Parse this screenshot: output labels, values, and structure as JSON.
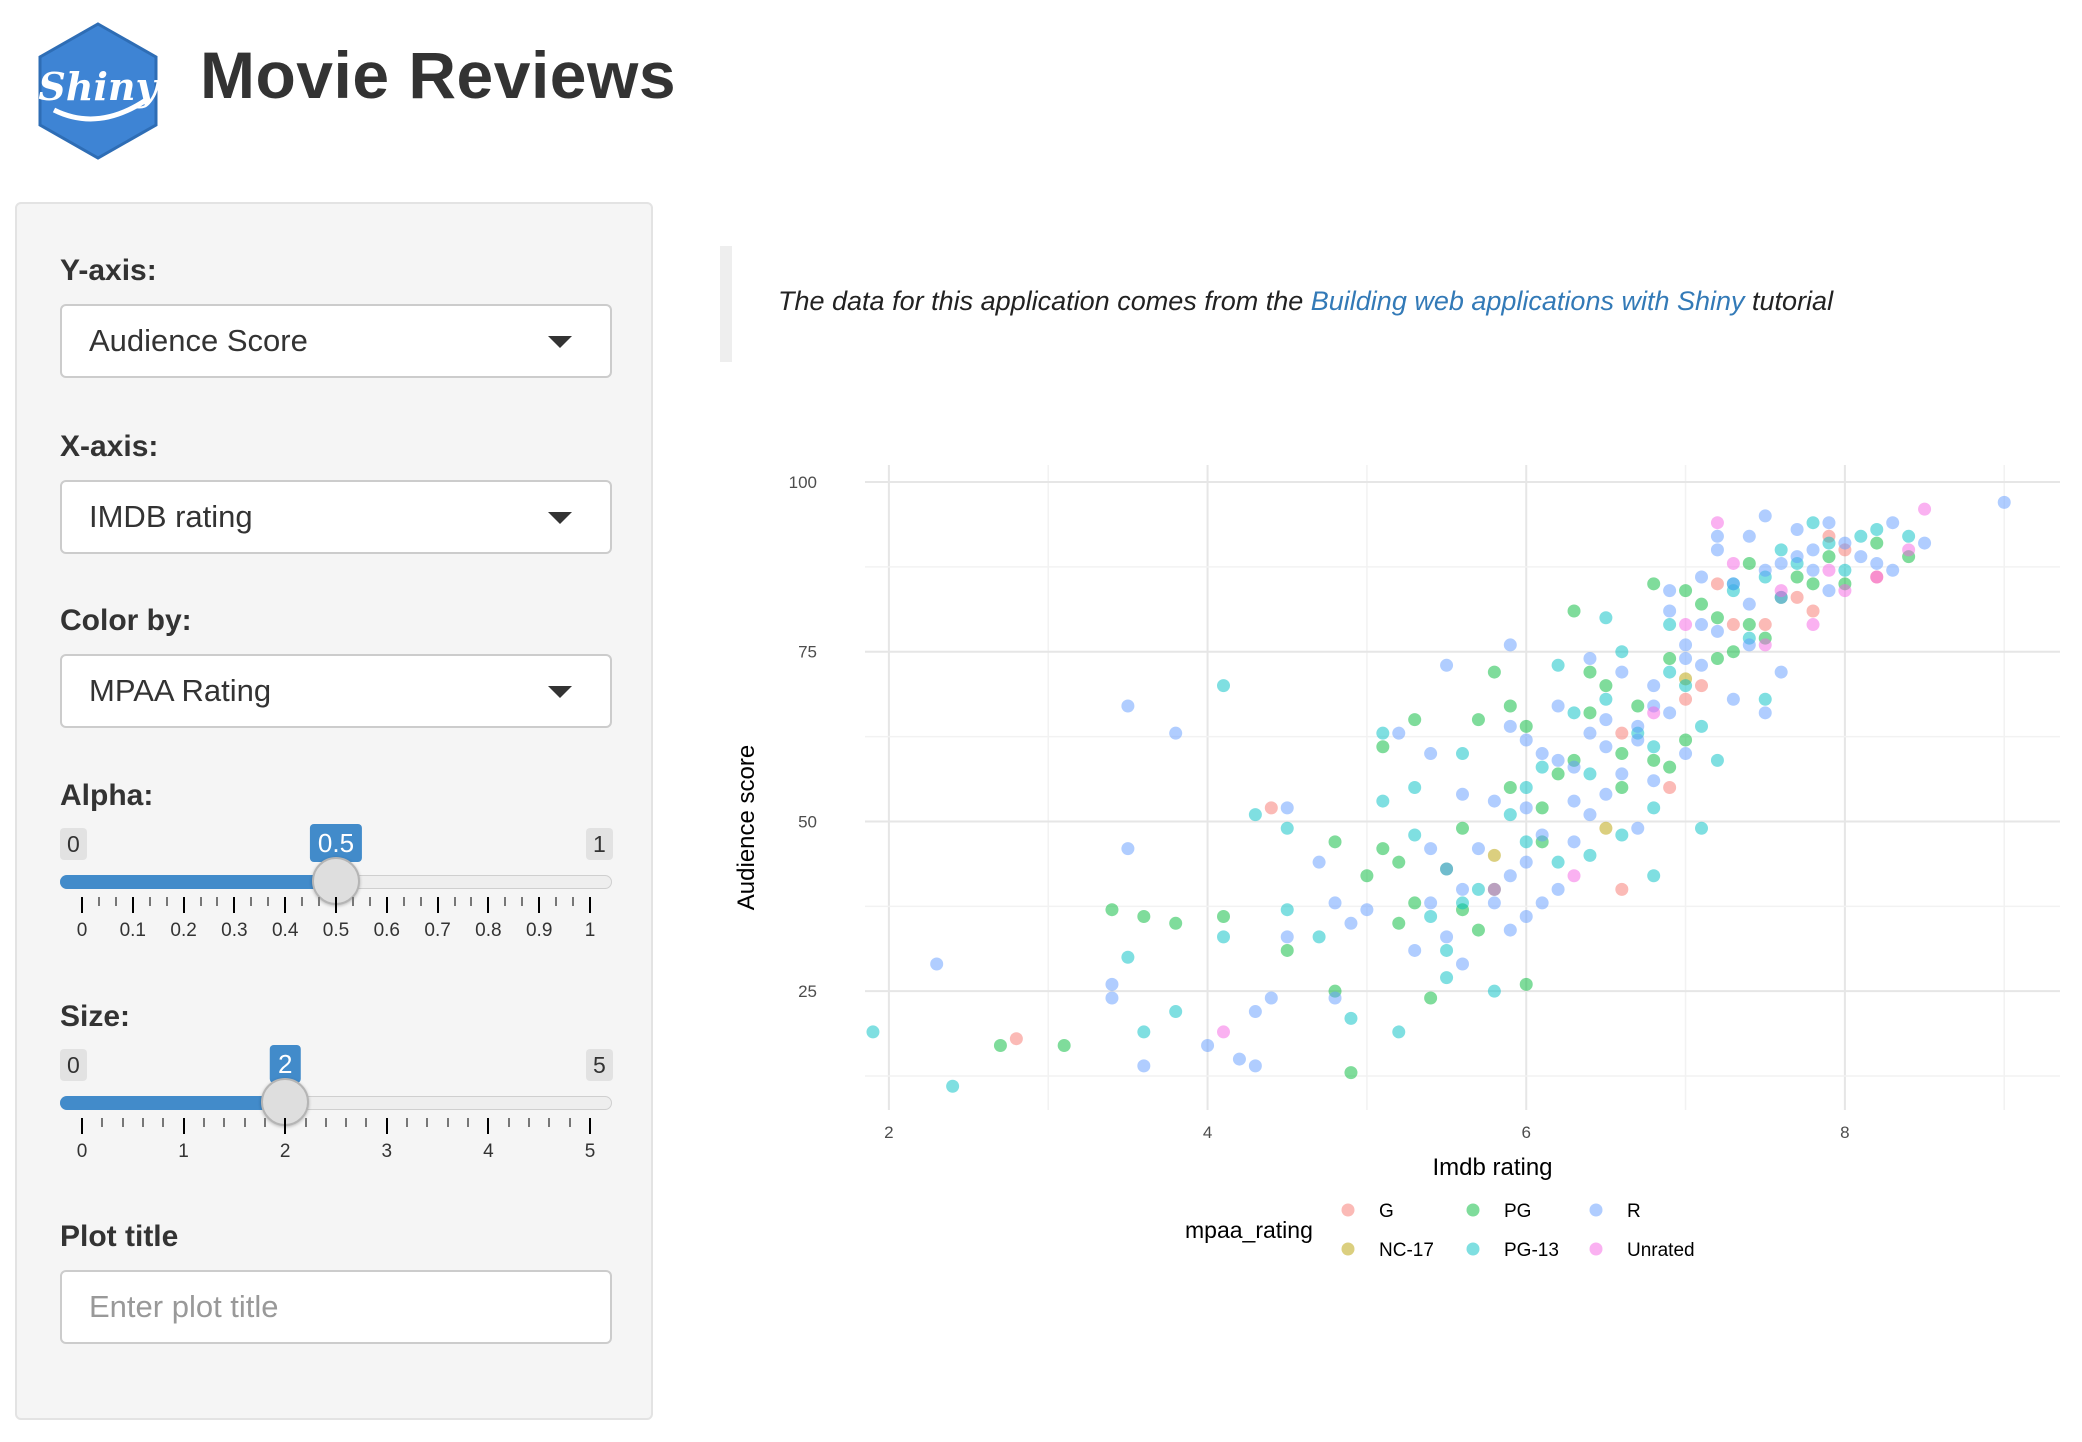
{
  "app": {
    "logo_text": "Shiny",
    "title": "Movie Reviews"
  },
  "sidebar": {
    "y_axis": {
      "label": "Y-axis:",
      "value": "Audience Score"
    },
    "x_axis": {
      "label": "X-axis:",
      "value": "IMDB rating"
    },
    "color_by": {
      "label": "Color by:",
      "value": "MPAA Rating"
    },
    "alpha": {
      "label": "Alpha:",
      "min_label": "0",
      "max_label": "1",
      "value_label": "0.5",
      "min": 0,
      "max": 1,
      "value": 0.5,
      "tick_labels": [
        "0",
        "0.1",
        "0.2",
        "0.3",
        "0.4",
        "0.5",
        "0.6",
        "0.7",
        "0.8",
        "0.9",
        "1"
      ]
    },
    "size": {
      "label": "Size:",
      "min_label": "0",
      "max_label": "5",
      "value_label": "2",
      "min": 0,
      "max": 5,
      "value": 2,
      "tick_labels": [
        "0",
        "1",
        "2",
        "3",
        "4",
        "5"
      ]
    },
    "plot_title": {
      "label": "Plot title",
      "placeholder": "Enter plot title"
    }
  },
  "main": {
    "description_before": "The data for this application comes from the ",
    "link_text": "Building web applications with Shiny",
    "description_after": " tutorial"
  },
  "chart_data": {
    "type": "scatter",
    "title": "",
    "xlabel": "Imdb rating",
    "ylabel": "Audience score",
    "x_ticks": [
      "2",
      "4",
      "6",
      "8"
    ],
    "y_ticks": [
      "25",
      "50",
      "75",
      "100"
    ],
    "xlim": [
      1.85,
      9.35
    ],
    "ylim": [
      7.5,
      102.5
    ],
    "grid": true,
    "legend": {
      "title": "mpaa_rating",
      "position": "bottom",
      "items": [
        {
          "label": "G",
          "color": "#f8766d"
        },
        {
          "label": "NC-17",
          "color": "#b79f00"
        },
        {
          "label": "PG",
          "color": "#00ba38"
        },
        {
          "label": "PG-13",
          "color": "#00bfc4"
        },
        {
          "label": "R",
          "color": "#619cff"
        },
        {
          "label": "Unrated",
          "color": "#f564e3"
        }
      ]
    },
    "series": [
      {
        "name": "G",
        "color": "#f8766d",
        "points": [
          [
            2.8,
            18
          ],
          [
            4.4,
            52
          ],
          [
            6.6,
            40
          ],
          [
            6.9,
            55
          ],
          [
            7.0,
            68
          ],
          [
            7.3,
            79
          ],
          [
            7.5,
            79
          ],
          [
            7.7,
            83
          ],
          [
            7.9,
            92
          ],
          [
            8.0,
            90
          ],
          [
            7.8,
            81
          ],
          [
            7.2,
            85
          ],
          [
            6.6,
            63
          ],
          [
            7.1,
            70
          ],
          [
            8.2,
            86
          ]
        ]
      },
      {
        "name": "NC-17",
        "color": "#b79f00",
        "points": [
          [
            5.8,
            45
          ],
          [
            6.5,
            49
          ],
          [
            7.0,
            71
          ]
        ]
      },
      {
        "name": "PG",
        "color": "#00ba38",
        "points": [
          [
            2.7,
            17
          ],
          [
            3.1,
            17
          ],
          [
            3.4,
            37
          ],
          [
            3.6,
            36
          ],
          [
            3.8,
            35
          ],
          [
            4.1,
            36
          ],
          [
            4.5,
            31
          ],
          [
            4.8,
            47
          ],
          [
            4.9,
            13
          ],
          [
            5.1,
            61
          ],
          [
            5.3,
            65
          ],
          [
            5.1,
            46
          ],
          [
            5.2,
            35
          ],
          [
            5.4,
            24
          ],
          [
            5.7,
            65
          ],
          [
            5.8,
            72
          ],
          [
            6.0,
            26
          ],
          [
            6.1,
            47
          ],
          [
            6.3,
            81
          ],
          [
            6.4,
            72
          ],
          [
            6.5,
            70
          ],
          [
            6.7,
            67
          ],
          [
            6.8,
            85
          ],
          [
            7.0,
            84
          ],
          [
            7.1,
            82
          ],
          [
            7.4,
            88
          ],
          [
            7.7,
            86
          ],
          [
            7.9,
            89
          ],
          [
            8.2,
            91
          ],
          [
            8.4,
            89
          ],
          [
            7.3,
            75
          ],
          [
            6.9,
            58
          ],
          [
            6.2,
            57
          ],
          [
            5.9,
            55
          ],
          [
            5.6,
            49
          ],
          [
            6.6,
            55
          ],
          [
            7.2,
            74
          ],
          [
            7.6,
            83
          ],
          [
            6.0,
            64
          ],
          [
            5.5,
            43
          ],
          [
            5.3,
            38
          ],
          [
            6.8,
            59
          ],
          [
            7.5,
            77
          ],
          [
            8.0,
            85
          ],
          [
            5.0,
            42
          ],
          [
            5.9,
            67
          ],
          [
            6.4,
            66
          ],
          [
            7.0,
            62
          ],
          [
            5.6,
            37
          ],
          [
            4.8,
            25
          ],
          [
            6.6,
            60
          ],
          [
            7.8,
            85
          ],
          [
            6.1,
            52
          ],
          [
            5.7,
            34
          ],
          [
            6.9,
            74
          ],
          [
            7.4,
            79
          ],
          [
            6.3,
            59
          ],
          [
            5.2,
            44
          ],
          [
            5.8,
            40
          ],
          [
            7.2,
            80
          ]
        ]
      },
      {
        "name": "PG-13",
        "color": "#00bfc4",
        "points": [
          [
            1.9,
            19
          ],
          [
            2.4,
            11
          ],
          [
            3.5,
            30
          ],
          [
            3.6,
            19
          ],
          [
            3.8,
            22
          ],
          [
            4.1,
            70
          ],
          [
            4.1,
            33
          ],
          [
            4.3,
            51
          ],
          [
            4.5,
            49
          ],
          [
            4.5,
            37
          ],
          [
            4.7,
            33
          ],
          [
            4.9,
            21
          ],
          [
            5.1,
            53
          ],
          [
            5.2,
            19
          ],
          [
            5.3,
            55
          ],
          [
            5.5,
            31
          ],
          [
            5.6,
            38
          ],
          [
            5.8,
            25
          ],
          [
            6.0,
            55
          ],
          [
            6.2,
            44
          ],
          [
            6.4,
            57
          ],
          [
            6.6,
            48
          ],
          [
            6.8,
            42
          ],
          [
            6.8,
            61
          ],
          [
            7.0,
            70
          ],
          [
            7.1,
            49
          ],
          [
            7.1,
            64
          ],
          [
            7.2,
            59
          ],
          [
            7.3,
            85
          ],
          [
            7.5,
            68
          ],
          [
            7.6,
            90
          ],
          [
            7.8,
            94
          ],
          [
            8.0,
            87
          ],
          [
            8.2,
            93
          ],
          [
            8.4,
            92
          ],
          [
            6.9,
            72
          ],
          [
            6.5,
            68
          ],
          [
            6.1,
            58
          ],
          [
            5.7,
            40
          ],
          [
            5.9,
            51
          ],
          [
            6.3,
            66
          ],
          [
            7.4,
            77
          ],
          [
            7.7,
            88
          ],
          [
            6.7,
            63
          ],
          [
            5.4,
            36
          ],
          [
            6.0,
            47
          ],
          [
            6.2,
            73
          ],
          [
            6.5,
            80
          ],
          [
            6.9,
            79
          ],
          [
            7.3,
            84
          ],
          [
            7.9,
            91
          ],
          [
            5.1,
            63
          ],
          [
            5.5,
            27
          ],
          [
            6.8,
            52
          ],
          [
            7.5,
            86
          ],
          [
            5.3,
            48
          ],
          [
            6.6,
            75
          ],
          [
            6.4,
            45
          ],
          [
            5.6,
            60
          ],
          [
            8.1,
            92
          ]
        ]
      },
      {
        "name": "R",
        "color": "#619cff",
        "points": [
          [
            2.3,
            29
          ],
          [
            3.4,
            26
          ],
          [
            3.4,
            24
          ],
          [
            3.5,
            67
          ],
          [
            3.5,
            46
          ],
          [
            3.6,
            14
          ],
          [
            3.8,
            63
          ],
          [
            4.0,
            17
          ],
          [
            4.2,
            15
          ],
          [
            4.3,
            22
          ],
          [
            4.3,
            14
          ],
          [
            4.4,
            24
          ],
          [
            4.5,
            52
          ],
          [
            4.5,
            33
          ],
          [
            4.7,
            44
          ],
          [
            4.8,
            38
          ],
          [
            4.8,
            24
          ],
          [
            4.9,
            35
          ],
          [
            5.0,
            37
          ],
          [
            5.2,
            63
          ],
          [
            5.3,
            31
          ],
          [
            5.4,
            38
          ],
          [
            5.4,
            60
          ],
          [
            5.5,
            33
          ],
          [
            5.5,
            73
          ],
          [
            5.6,
            40
          ],
          [
            5.6,
            29
          ],
          [
            5.8,
            53
          ],
          [
            5.9,
            76
          ],
          [
            5.9,
            42
          ],
          [
            6.0,
            36
          ],
          [
            6.0,
            62
          ],
          [
            6.1,
            48
          ],
          [
            6.2,
            40
          ],
          [
            6.2,
            67
          ],
          [
            6.3,
            53
          ],
          [
            6.4,
            74
          ],
          [
            6.5,
            54
          ],
          [
            6.6,
            57
          ],
          [
            6.7,
            64
          ],
          [
            6.8,
            70
          ],
          [
            6.8,
            56
          ],
          [
            6.9,
            66
          ],
          [
            7.0,
            76
          ],
          [
            7.1,
            79
          ],
          [
            7.1,
            73
          ],
          [
            7.2,
            90
          ],
          [
            7.3,
            68
          ],
          [
            7.4,
            82
          ],
          [
            7.5,
            95
          ],
          [
            7.5,
            87
          ],
          [
            7.6,
            83
          ],
          [
            7.7,
            89
          ],
          [
            7.8,
            87
          ],
          [
            7.9,
            94
          ],
          [
            8.0,
            91
          ],
          [
            8.1,
            89
          ],
          [
            8.3,
            94
          ],
          [
            8.5,
            91
          ],
          [
            9.0,
            97
          ],
          [
            6.1,
            60
          ],
          [
            5.7,
            46
          ],
          [
            6.3,
            47
          ],
          [
            6.7,
            62
          ],
          [
            7.2,
            78
          ],
          [
            7.6,
            88
          ],
          [
            5.8,
            38
          ],
          [
            6.4,
            51
          ],
          [
            6.9,
            81
          ],
          [
            7.3,
            85
          ],
          [
            7.8,
            90
          ],
          [
            8.2,
            88
          ],
          [
            5.9,
            34
          ],
          [
            6.5,
            65
          ],
          [
            7.0,
            74
          ],
          [
            7.4,
            76
          ],
          [
            7.7,
            93
          ],
          [
            6.0,
            44
          ],
          [
            6.6,
            72
          ],
          [
            7.1,
            86
          ],
          [
            5.6,
            54
          ],
          [
            6.2,
            59
          ],
          [
            6.8,
            67
          ],
          [
            7.5,
            66
          ],
          [
            6.1,
            38
          ],
          [
            6.7,
            49
          ],
          [
            7.9,
            84
          ],
          [
            5.5,
            43
          ],
          [
            6.3,
            58
          ],
          [
            7.2,
            92
          ],
          [
            7.0,
            60
          ],
          [
            6.5,
            61
          ],
          [
            6.9,
            84
          ],
          [
            5.4,
            46
          ],
          [
            6.0,
            52
          ],
          [
            7.6,
            72
          ],
          [
            7.4,
            92
          ],
          [
            8.3,
            87
          ],
          [
            6.4,
            63
          ],
          [
            5.9,
            64
          ]
        ]
      },
      {
        "name": "Unrated",
        "color": "#f564e3",
        "points": [
          [
            4.1,
            19
          ],
          [
            5.8,
            40
          ],
          [
            6.3,
            42
          ],
          [
            7.0,
            79
          ],
          [
            7.3,
            88
          ],
          [
            7.5,
            76
          ],
          [
            7.6,
            84
          ],
          [
            7.8,
            79
          ],
          [
            8.0,
            84
          ],
          [
            8.2,
            86
          ],
          [
            8.4,
            90
          ],
          [
            8.5,
            96
          ],
          [
            7.2,
            94
          ],
          [
            7.9,
            87
          ],
          [
            6.8,
            66
          ]
        ]
      }
    ]
  }
}
